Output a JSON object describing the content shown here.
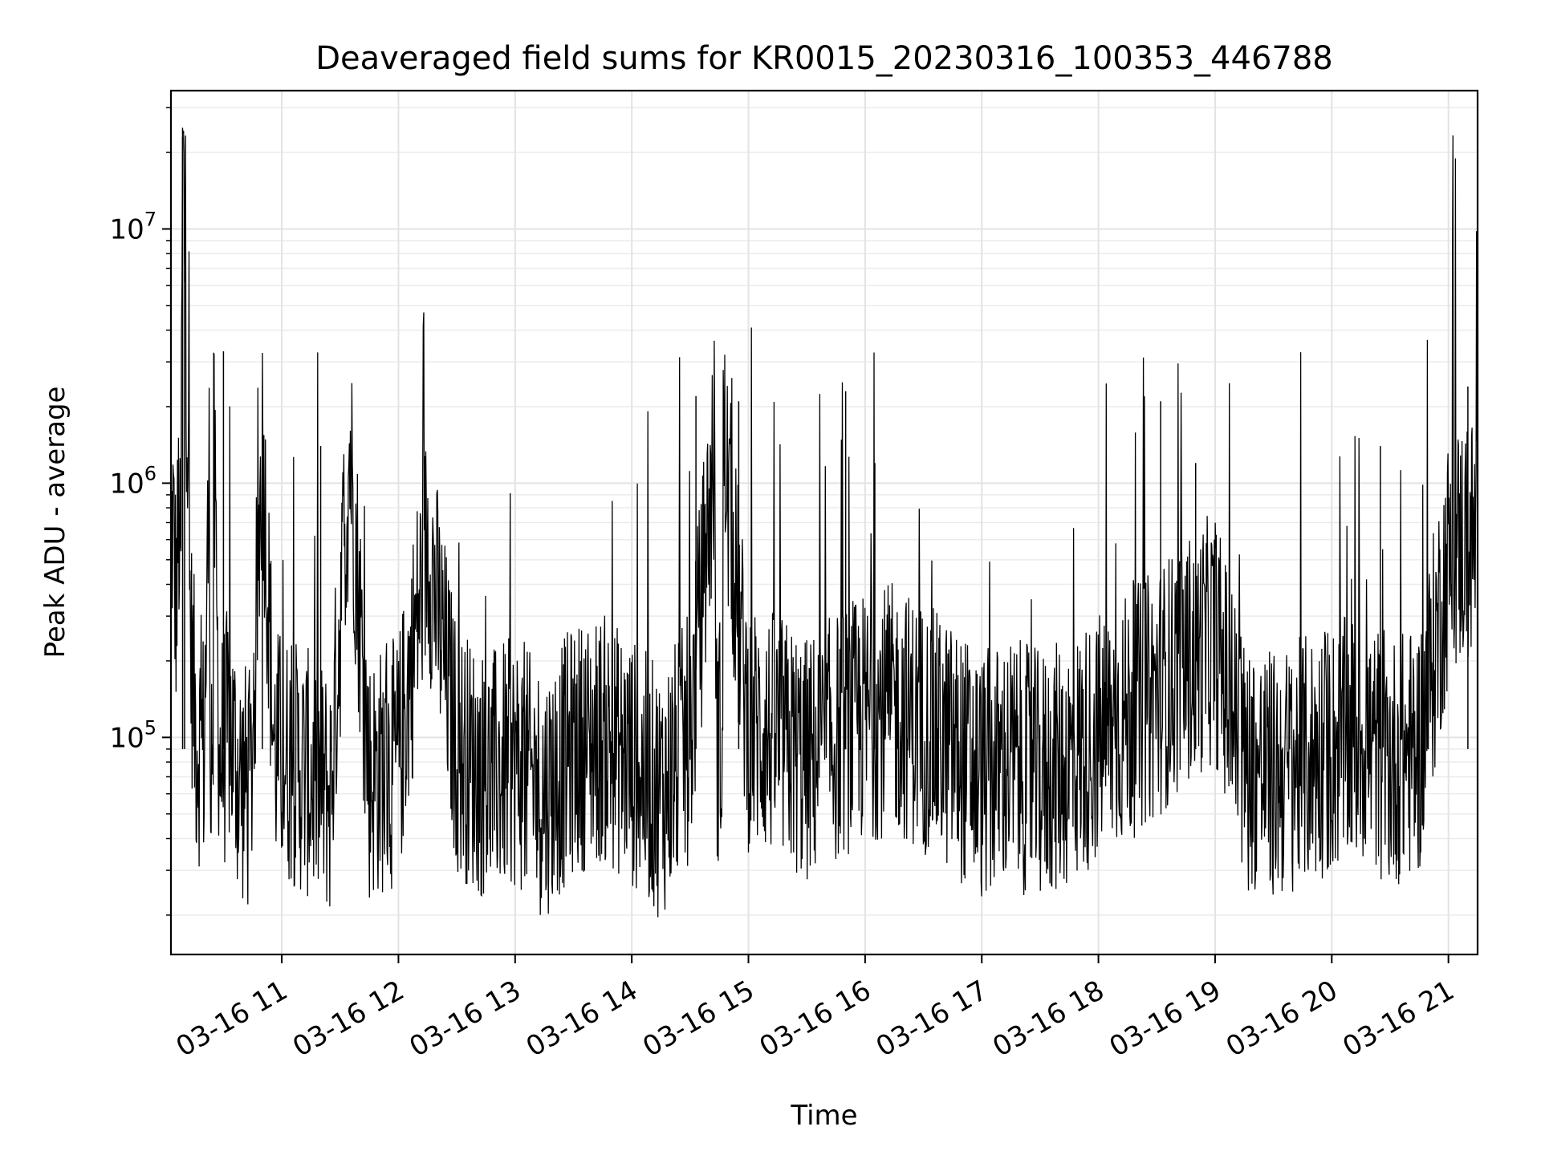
{
  "chart_data": {
    "type": "line",
    "title": "Deaveraged field sums for KR0015_20230316_100353_446788",
    "xlabel": "Time",
    "ylabel": "Peak ADU - average",
    "y_scale": "log",
    "ylim": [
      14000,
      35000000
    ],
    "xlim": [
      "2023-03-16 10:03",
      "2023-03-16 21:15"
    ],
    "grid": true,
    "line_color": "#000000",
    "x_ticks": [
      {
        "t": "2023-03-16 11:00",
        "label": "03-16 11"
      },
      {
        "t": "2023-03-16 12:00",
        "label": "03-16 12"
      },
      {
        "t": "2023-03-16 13:00",
        "label": "03-16 13"
      },
      {
        "t": "2023-03-16 14:00",
        "label": "03-16 14"
      },
      {
        "t": "2023-03-16 15:00",
        "label": "03-16 15"
      },
      {
        "t": "2023-03-16 16:00",
        "label": "03-16 16"
      },
      {
        "t": "2023-03-16 17:00",
        "label": "03-16 17"
      },
      {
        "t": "2023-03-16 18:00",
        "label": "03-16 18"
      },
      {
        "t": "2023-03-16 19:00",
        "label": "03-16 19"
      },
      {
        "t": "2023-03-16 20:00",
        "label": "03-16 20"
      },
      {
        "t": "2023-03-16 21:00",
        "label": "03-16 21"
      }
    ],
    "y_ticks": [
      {
        "value": 100000,
        "base": "10",
        "exp": "5"
      },
      {
        "value": 1000000,
        "base": "10",
        "exp": "6"
      },
      {
        "value": 10000000,
        "base": "10",
        "exp": "7"
      }
    ],
    "series": [
      {
        "x": [
          "2023-03-16 10:03",
          "2023-03-16 10:04",
          "2023-03-16 10:05",
          "2023-03-16 10:06",
          "2023-03-16 10:07",
          "2023-03-16 10:08",
          "2023-03-16 10:09",
          "2023-03-16 10:10",
          "2023-03-16 10:13",
          "2023-03-16 10:16",
          "2023-03-16 10:20",
          "2023-03-16 10:24",
          "2023-03-16 10:28",
          "2023-03-16 10:33",
          "2023-03-16 10:38",
          "2023-03-16 10:44",
          "2023-03-16 10:50",
          "2023-03-16 10:56",
          "2023-03-16 11:05",
          "2023-03-16 11:15",
          "2023-03-16 11:25",
          "2023-03-16 11:35",
          "2023-03-16 11:45",
          "2023-03-16 12:00",
          "2023-03-16 12:15",
          "2023-03-16 12:30",
          "2023-03-16 12:45",
          "2023-03-16 13:00",
          "2023-03-16 13:15",
          "2023-03-16 13:30",
          "2023-03-16 13:45",
          "2023-03-16 14:00",
          "2023-03-16 14:15",
          "2023-03-16 14:30",
          "2023-03-16 14:45",
          "2023-03-16 15:00",
          "2023-03-16 15:15",
          "2023-03-16 15:30",
          "2023-03-16 15:45",
          "2023-03-16 16:00",
          "2023-03-16 16:15",
          "2023-03-16 16:30",
          "2023-03-16 16:45",
          "2023-03-16 17:00",
          "2023-03-16 17:15",
          "2023-03-16 17:30",
          "2023-03-16 17:45",
          "2023-03-16 18:00",
          "2023-03-16 18:15",
          "2023-03-16 18:30",
          "2023-03-16 18:45",
          "2023-03-16 19:00",
          "2023-03-16 19:15",
          "2023-03-16 19:30",
          "2023-03-16 19:45",
          "2023-03-16 20:00",
          "2023-03-16 20:15",
          "2023-03-16 20:30",
          "2023-03-16 20:45",
          "2023-03-16 21:00",
          "2023-03-16 21:08",
          "2023-03-16 21:15"
        ],
        "y": [
          500000,
          750000,
          400000,
          350000,
          800000,
          300000,
          23000000,
          10000000,
          250000,
          100000,
          90000,
          3300000,
          80000,
          110000,
          70000,
          60000,
          1500000,
          90000,
          80000,
          70000,
          60000,
          1400000,
          70000,
          80000,
          600000,
          90000,
          70000,
          80000,
          60000,
          90000,
          100000,
          80000,
          60000,
          100000,
          2200000,
          110000,
          100000,
          80000,
          100000,
          120000,
          130000,
          110000,
          90000,
          70000,
          80000,
          70000,
          80000,
          100000,
          120000,
          150000,
          200000,
          250000,
          80000,
          70000,
          80000,
          90000,
          100000,
          80000,
          90000,
          500000,
          600000,
          600000
        ],
        "spikes": [
          {
            "t": "2023-03-16 10:30",
            "y": 3300000
          },
          {
            "t": "2023-03-16 10:50",
            "y": 1550000
          },
          {
            "t": "2023-03-16 11:20",
            "y": 1400000
          },
          {
            "t": "2023-03-16 14:33",
            "y": 2200000
          },
          {
            "t": "2023-03-16 14:55",
            "y": 2100000
          },
          {
            "t": "2023-03-16 15:50",
            "y": 2300000
          },
          {
            "t": "2023-03-16 16:05",
            "y": 1200000
          },
          {
            "t": "2023-03-16 18:32",
            "y": 2100000
          },
          {
            "t": "2023-03-16 18:50",
            "y": 1200000
          },
          {
            "t": "2023-03-16 20:25",
            "y": 1400000
          },
          {
            "t": "2023-03-16 21:10",
            "y": 2400000
          }
        ]
      }
    ]
  }
}
